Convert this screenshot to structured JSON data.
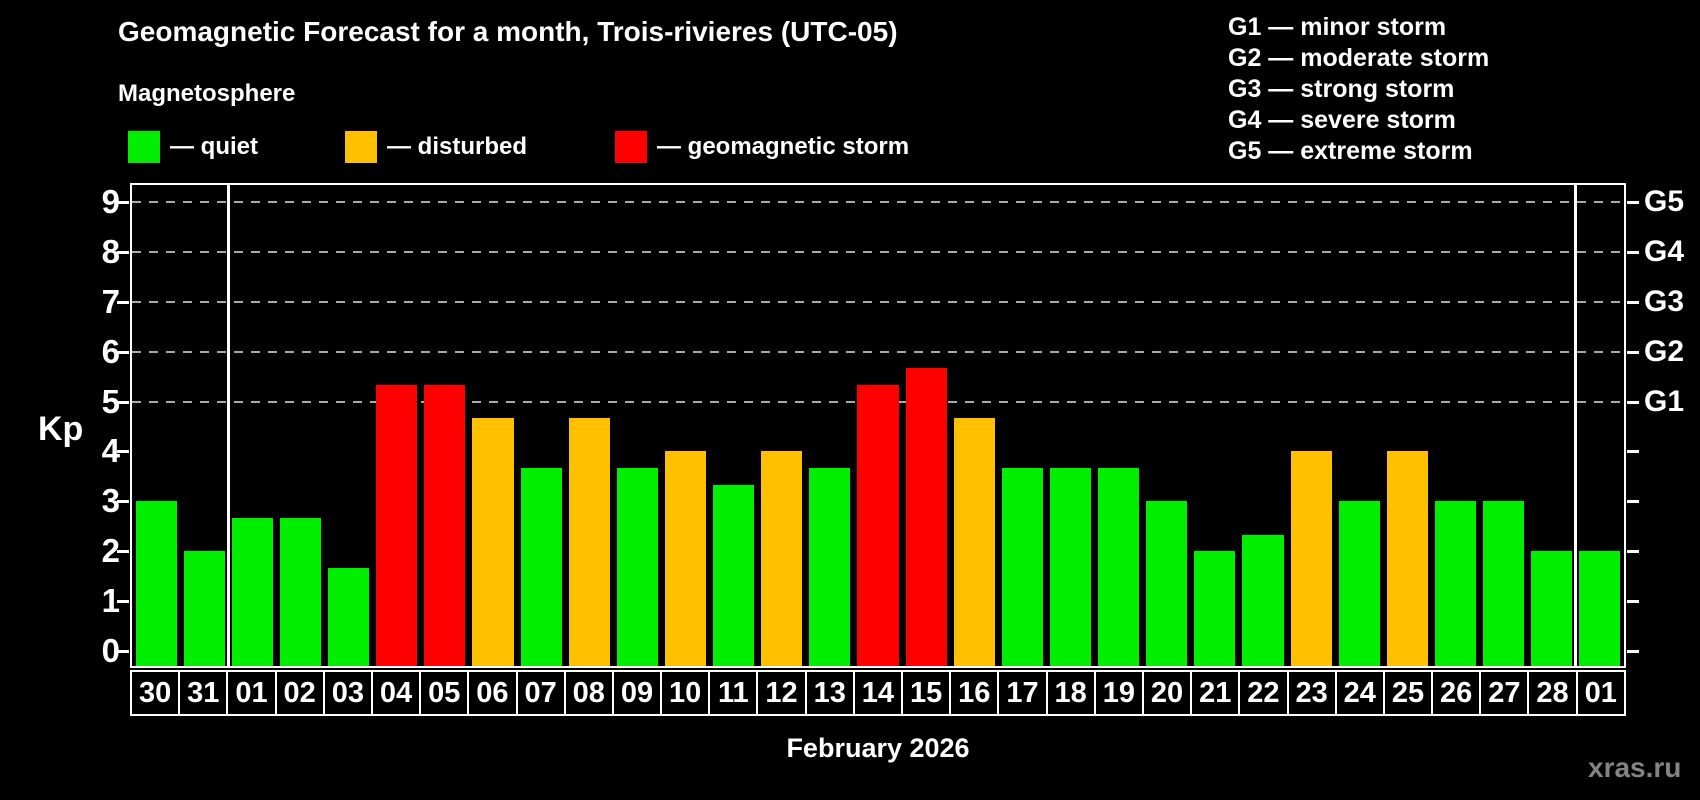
{
  "title": "Geomagnetic Forecast for a month, Trois-rivieres (UTC-05)",
  "subtitle": "Magnetosphere",
  "legend": {
    "items": [
      {
        "key": "quiet",
        "label": "— quiet",
        "color": "#00ee00"
      },
      {
        "key": "disturbed",
        "label": "— disturbed",
        "color": "#ffc000"
      },
      {
        "key": "storm",
        "label": "— geomagnetic storm",
        "color": "#ff0000"
      }
    ]
  },
  "g_legend": {
    "items": [
      "G1 — minor storm",
      "G2 — moderate storm",
      "G3 — strong storm",
      "G4 — severe storm",
      "G5 — extreme storm"
    ]
  },
  "chart_data": {
    "type": "bar",
    "title": "Geomagnetic Forecast for a month, Trois-rivieres (UTC-05)",
    "ylabel": "Kp",
    "xlabel": "February 2026",
    "ylim": [
      0,
      9
    ],
    "yticks": [
      0,
      1,
      2,
      3,
      4,
      5,
      6,
      7,
      8,
      9
    ],
    "gridlines_at": [
      5,
      6,
      7,
      8,
      9
    ],
    "grid": "dashed horizontal at storm levels only",
    "legend_position": "top-left",
    "right_axis_labels": [
      {
        "kp": 5,
        "label": "G1"
      },
      {
        "kp": 6,
        "label": "G2"
      },
      {
        "kp": 7,
        "label": "G3"
      },
      {
        "kp": 8,
        "label": "G4"
      },
      {
        "kp": 9,
        "label": "G5"
      }
    ],
    "categories": [
      "30",
      "31",
      "01",
      "02",
      "03",
      "04",
      "05",
      "06",
      "07",
      "08",
      "09",
      "10",
      "11",
      "12",
      "13",
      "14",
      "15",
      "16",
      "17",
      "18",
      "19",
      "20",
      "21",
      "22",
      "23",
      "24",
      "25",
      "26",
      "27",
      "28",
      "01"
    ],
    "values": [
      3.0,
      2.0,
      2.67,
      2.67,
      1.67,
      5.33,
      5.33,
      4.67,
      3.67,
      4.67,
      3.67,
      4.0,
      3.33,
      4.0,
      3.67,
      5.33,
      5.67,
      4.67,
      3.67,
      3.67,
      3.67,
      3.0,
      2.0,
      2.33,
      4.0,
      3.0,
      4.0,
      3.0,
      3.0,
      2.0,
      2.0
    ],
    "statuses": [
      "quiet",
      "quiet",
      "quiet",
      "quiet",
      "quiet",
      "storm",
      "storm",
      "disturbed",
      "quiet",
      "disturbed",
      "quiet",
      "disturbed",
      "quiet",
      "disturbed",
      "quiet",
      "storm",
      "storm",
      "disturbed",
      "quiet",
      "quiet",
      "quiet",
      "quiet",
      "quiet",
      "quiet",
      "disturbed",
      "quiet",
      "disturbed",
      "quiet",
      "quiet",
      "quiet",
      "quiet"
    ],
    "status_colors": {
      "quiet": "#00ee00",
      "disturbed": "#ffc000",
      "storm": "#ff0000"
    },
    "month_separators_after_index": [
      1,
      29
    ]
  },
  "watermark": "xras.ru"
}
